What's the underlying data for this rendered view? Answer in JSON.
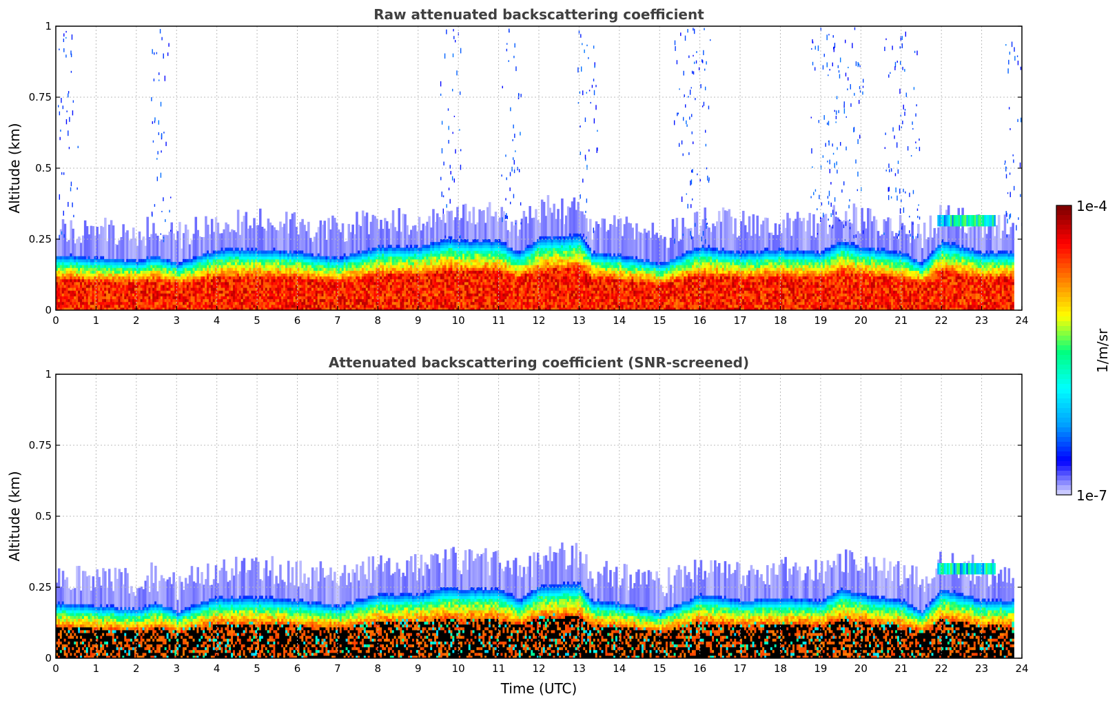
{
  "colors": {
    "colormap": [
      "#e8e8ff",
      "#0000ff",
      "#00a0ff",
      "#00ffff",
      "#00ff80",
      "#ffff00",
      "#ff8000",
      "#ff0000",
      "#800000"
    ],
    "masked": "#000000",
    "grid": "#bbbbbb"
  },
  "chart_data": [
    {
      "type": "heatmap",
      "title": "Raw attenuated backscattering coefficient",
      "xlabel": "",
      "ylabel": "Altitude (km)",
      "xlim": [
        0,
        24
      ],
      "ylim": [
        0,
        1
      ],
      "xticks": [
        "0",
        "1",
        "2",
        "3",
        "4",
        "5",
        "6",
        "7",
        "8",
        "9",
        "10",
        "11",
        "12",
        "13",
        "14",
        "15",
        "16",
        "17",
        "18",
        "19",
        "20",
        "21",
        "22",
        "23",
        "24"
      ],
      "yticks": [
        "0",
        "0.25",
        "0.5",
        "0.75",
        "1"
      ],
      "grid": true,
      "data_end_time": 23.8,
      "boundary_layer_top_km": [
        [
          0,
          0.19
        ],
        [
          1,
          0.18
        ],
        [
          2,
          0.17
        ],
        [
          2.5,
          0.19
        ],
        [
          3,
          0.16
        ],
        [
          4,
          0.21
        ],
        [
          5,
          0.21
        ],
        [
          6,
          0.2
        ],
        [
          7,
          0.18
        ],
        [
          8,
          0.22
        ],
        [
          9,
          0.22
        ],
        [
          9.8,
          0.25
        ],
        [
          10,
          0.24
        ],
        [
          11,
          0.24
        ],
        [
          11.5,
          0.2
        ],
        [
          12,
          0.25
        ],
        [
          13,
          0.26
        ],
        [
          13.3,
          0.2
        ],
        [
          14,
          0.19
        ],
        [
          15,
          0.16
        ],
        [
          16,
          0.22
        ],
        [
          17,
          0.2
        ],
        [
          18,
          0.21
        ],
        [
          19,
          0.2
        ],
        [
          19.5,
          0.24
        ],
        [
          20,
          0.22
        ],
        [
          21,
          0.2
        ],
        [
          21.5,
          0.16
        ],
        [
          22,
          0.24
        ],
        [
          23,
          0.2
        ],
        [
          23.8,
          0.2
        ]
      ],
      "elevated_layer": {
        "time": [
          21.9,
          23.3
        ],
        "altitude_km": [
          0.29,
          0.34
        ]
      },
      "colorbar": {
        "label": "1/m/sr",
        "min_label": "1e-7",
        "max_label": "1e-4",
        "scale": "log"
      }
    },
    {
      "type": "heatmap",
      "title": "Attenuated backscattering coefficient (SNR-screened)",
      "xlabel": "Time (UTC)",
      "ylabel": "Altitude (km)",
      "xlim": [
        0,
        24
      ],
      "ylim": [
        0,
        1
      ],
      "xticks": [
        "0",
        "1",
        "2",
        "3",
        "4",
        "5",
        "6",
        "7",
        "8",
        "9",
        "10",
        "11",
        "12",
        "13",
        "14",
        "15",
        "16",
        "17",
        "18",
        "19",
        "20",
        "21",
        "22",
        "23",
        "24"
      ],
      "yticks": [
        "0",
        "0.25",
        "0.5",
        "0.75",
        "1"
      ],
      "grid": true,
      "data_end_time": 23.8,
      "screened_fill": "black",
      "colorbar": {
        "label": "1/m/sr",
        "min_label": "1e-7",
        "max_label": "1e-4",
        "scale": "log"
      }
    }
  ],
  "colorbar": {
    "label": "1/m/sr",
    "min_label": "1e-7",
    "max_label": "1e-4"
  }
}
